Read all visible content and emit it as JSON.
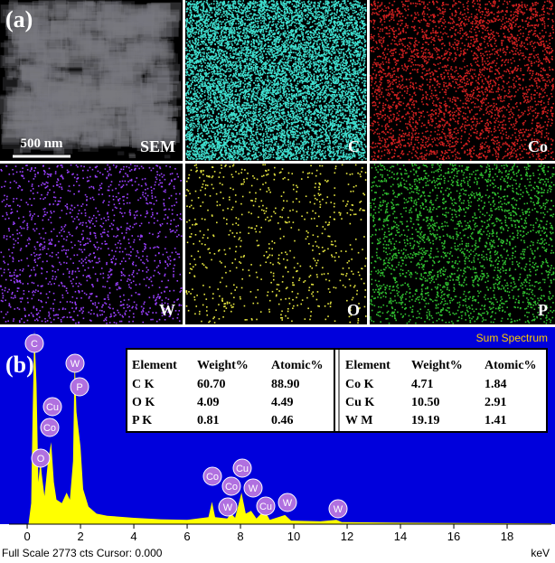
{
  "figure": {
    "panel_a": {
      "label": "(a)",
      "scale_bar": "500 nm",
      "maps": [
        {
          "name": "SEM",
          "color": "#7a7a80"
        },
        {
          "name": "C",
          "color": "#3fe0d0"
        },
        {
          "name": "Co",
          "color": "#d02020"
        },
        {
          "name": "W",
          "color": "#9a40ff"
        },
        {
          "name": "O",
          "color": "#e8e840"
        },
        {
          "name": "P",
          "color": "#30c030"
        }
      ]
    },
    "panel_b": {
      "label": "(b)",
      "title": "Sum Spectrum",
      "footer": "Full Scale 2773 cts Cursor: 0.000",
      "x_unit": "keV",
      "background": "#0000dc",
      "color": "#ffff00",
      "chart_data": {
        "type": "area",
        "x": [
          -0.68,
          0.05,
          0.15,
          0.2,
          0.27,
          0.35,
          0.42,
          0.5,
          0.55,
          0.65,
          0.78,
          0.9,
          1.0,
          1.1,
          1.3,
          1.48,
          1.6,
          1.72,
          1.78,
          1.85,
          2.0,
          2.1,
          2.3,
          2.6,
          3,
          4,
          5,
          6,
          6.8,
          6.93,
          7.05,
          7.5,
          7.65,
          7.8,
          8.04,
          8.2,
          8.4,
          8.6,
          8.9,
          9.1,
          9.67,
          9.9,
          11,
          11.6,
          11.8,
          14,
          19.66
        ],
        "values": [
          0,
          0,
          300,
          1500,
          2773,
          2000,
          600,
          900,
          700,
          400,
          900,
          1170,
          600,
          350,
          300,
          450,
          350,
          900,
          2390,
          1600,
          1100,
          500,
          250,
          150,
          120,
          90,
          70,
          60,
          100,
          320,
          100,
          80,
          150,
          90,
          450,
          150,
          190,
          80,
          200,
          60,
          130,
          50,
          40,
          60,
          30,
          20,
          10
        ],
        "xlim": [
          -0.68,
          19.66
        ],
        "ylim": [
          0,
          2773
        ],
        "xticks": [
          0,
          2,
          4,
          6,
          8,
          10,
          12,
          14,
          16,
          18
        ]
      },
      "peak_labels": [
        "C",
        "Cu",
        "Co",
        "O",
        "W",
        "P",
        "Co",
        "Cu",
        "Co",
        "W",
        "W",
        "Cu",
        "W",
        "W"
      ],
      "table": {
        "header": [
          "Element",
          "Weight%",
          "Atomic%",
          "Element",
          "Weight%",
          "Atomic%"
        ],
        "rows": [
          [
            "C K",
            "60.70",
            "88.90",
            "Co K",
            "4.71",
            "1.84"
          ],
          [
            "O K",
            "4.09",
            "4.49",
            "Cu K",
            "10.50",
            "2.91"
          ],
          [
            "P K",
            "0.81",
            "0.46",
            "W M",
            "19.19",
            "1.41"
          ]
        ]
      }
    }
  }
}
